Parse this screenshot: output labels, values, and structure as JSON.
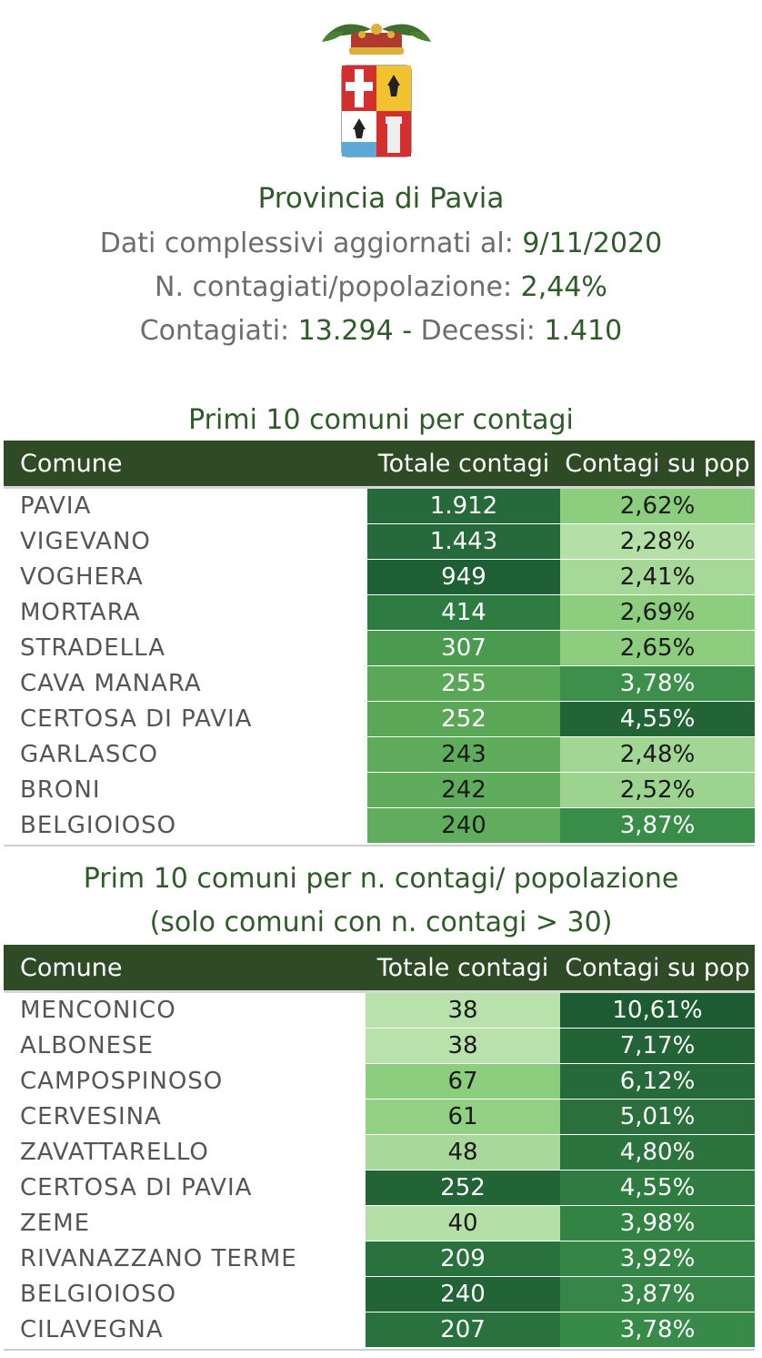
{
  "header": {
    "title": "Provincia di Pavia",
    "updated_label": "Dati complessivi aggiornati al:",
    "updated_date": "9/11/2020",
    "ratio_label": "N. contagiati/popolazione:",
    "ratio_value": "2,44%",
    "cases_label": "Contagiati:",
    "cases_value": "13.294",
    "separator": "-",
    "deaths_label": "Decessi:",
    "deaths_value": "1.410"
  },
  "colors": {
    "dark_green": "#2e4b25",
    "scale": [
      "#1d5c32",
      "#26693a",
      "#2e7c41",
      "#3d8f4b",
      "#55a357",
      "#72b86b",
      "#8ccd7e",
      "#a6d898",
      "#b9e1ab"
    ]
  },
  "table1": {
    "title": "Primi 10 comuni per contagi",
    "headers": [
      "Comune",
      "Totale contagi",
      "Contagi su pop"
    ],
    "rows": [
      {
        "comune": "PAVIA",
        "totale": "1.912",
        "pop": "2,62%",
        "c1": "#26693a",
        "c2": "#8ccd7e",
        "t1": "#ffffff",
        "t2": "#1a1a1a"
      },
      {
        "comune": "VIGEVANO",
        "totale": "1.443",
        "pop": "2,28%",
        "c1": "#26693a",
        "c2": "#b4e0a8",
        "t1": "#ffffff",
        "t2": "#1a1a1a"
      },
      {
        "comune": "VOGHERA",
        "totale": "949",
        "pop": "2,41%",
        "c1": "#1f5f34",
        "c2": "#a6d898",
        "t1": "#ffffff",
        "t2": "#1a1a1a"
      },
      {
        "comune": "MORTARA",
        "totale": "414",
        "pop": "2,69%",
        "c1": "#2e7c41",
        "c2": "#8ccd7e",
        "t1": "#ffffff",
        "t2": "#1a1a1a"
      },
      {
        "comune": "STRADELLA",
        "totale": "307",
        "pop": "2,65%",
        "c1": "#4a9a50",
        "c2": "#8ccd7e",
        "t1": "#ffffff",
        "t2": "#1a1a1a"
      },
      {
        "comune": "CAVA MANARA",
        "totale": "255",
        "pop": "3,78%",
        "c1": "#5aa758",
        "c2": "#3d8f4b",
        "t1": "#ffffff",
        "t2": "#ffffff"
      },
      {
        "comune": "CERTOSA DI PAVIA",
        "totale": "252",
        "pop": "4,55%",
        "c1": "#5aa758",
        "c2": "#236437",
        "t1": "#ffffff",
        "t2": "#ffffff"
      },
      {
        "comune": "GARLASCO",
        "totale": "243",
        "pop": "2,48%",
        "c1": "#5fac5c",
        "c2": "#a2d694",
        "t1": "#1a1a1a",
        "t2": "#1a1a1a"
      },
      {
        "comune": "BRONI",
        "totale": "242",
        "pop": "2,52%",
        "c1": "#5fac5c",
        "c2": "#9cd48f",
        "t1": "#1a1a1a",
        "t2": "#1a1a1a"
      },
      {
        "comune": "BELGIOIOSO",
        "totale": "240",
        "pop": "3,87%",
        "c1": "#61ad5e",
        "c2": "#3a8c49",
        "t1": "#1a1a1a",
        "t2": "#ffffff"
      }
    ]
  },
  "table2": {
    "title_line1": "Prim 10 comuni per n. contagi/ popolazione",
    "title_line2": "(solo comuni con n. contagi > 30)",
    "headers": [
      "Comune",
      "Totale contagi",
      "Contagi su pop"
    ],
    "rows": [
      {
        "comune": "MENCONICO",
        "totale": "38",
        "pop": "10,61%",
        "c1": "#b9e1ab",
        "c2": "#1d5c32",
        "t1": "#1a1a1a",
        "t2": "#ffffff"
      },
      {
        "comune": "ALBONESE",
        "totale": "38",
        "pop": "7,17%",
        "c1": "#b9e1ab",
        "c2": "#236437",
        "t1": "#1a1a1a",
        "t2": "#ffffff"
      },
      {
        "comune": "CAMPOSPINOSO",
        "totale": "67",
        "pop": "6,12%",
        "c1": "#8ccd7e",
        "c2": "#26693a",
        "t1": "#1a1a1a",
        "t2": "#ffffff"
      },
      {
        "comune": "CERVESINA",
        "totale": "61",
        "pop": "5,01%",
        "c1": "#92d084",
        "c2": "#2a6f3c",
        "t1": "#1a1a1a",
        "t2": "#ffffff"
      },
      {
        "comune": "ZAVATTARELLO",
        "totale": "48",
        "pop": "4,80%",
        "c1": "#a8d99a",
        "c2": "#2c743e",
        "t1": "#1a1a1a",
        "t2": "#ffffff"
      },
      {
        "comune": "CERTOSA DI PAVIA",
        "totale": "252",
        "pop": "4,55%",
        "c1": "#236437",
        "c2": "#2e7c41",
        "t1": "#ffffff",
        "t2": "#ffffff"
      },
      {
        "comune": "ZEME",
        "totale": "40",
        "pop": "3,98%",
        "c1": "#b4e0a8",
        "c2": "#338444",
        "t1": "#1a1a1a",
        "t2": "#ffffff"
      },
      {
        "comune": "RIVANAZZANO TERME",
        "totale": "209",
        "pop": "3,92%",
        "c1": "#2a723d",
        "c2": "#348546",
        "t1": "#ffffff",
        "t2": "#ffffff"
      },
      {
        "comune": "BELGIOIOSO",
        "totale": "240",
        "pop": "3,87%",
        "c1": "#236437",
        "c2": "#368747",
        "t1": "#ffffff",
        "t2": "#ffffff"
      },
      {
        "comune": "CILAVEGNA",
        "totale": "207",
        "pop": "3,78%",
        "c1": "#2a723d",
        "c2": "#388a48",
        "t1": "#ffffff",
        "t2": "#ffffff"
      }
    ]
  }
}
